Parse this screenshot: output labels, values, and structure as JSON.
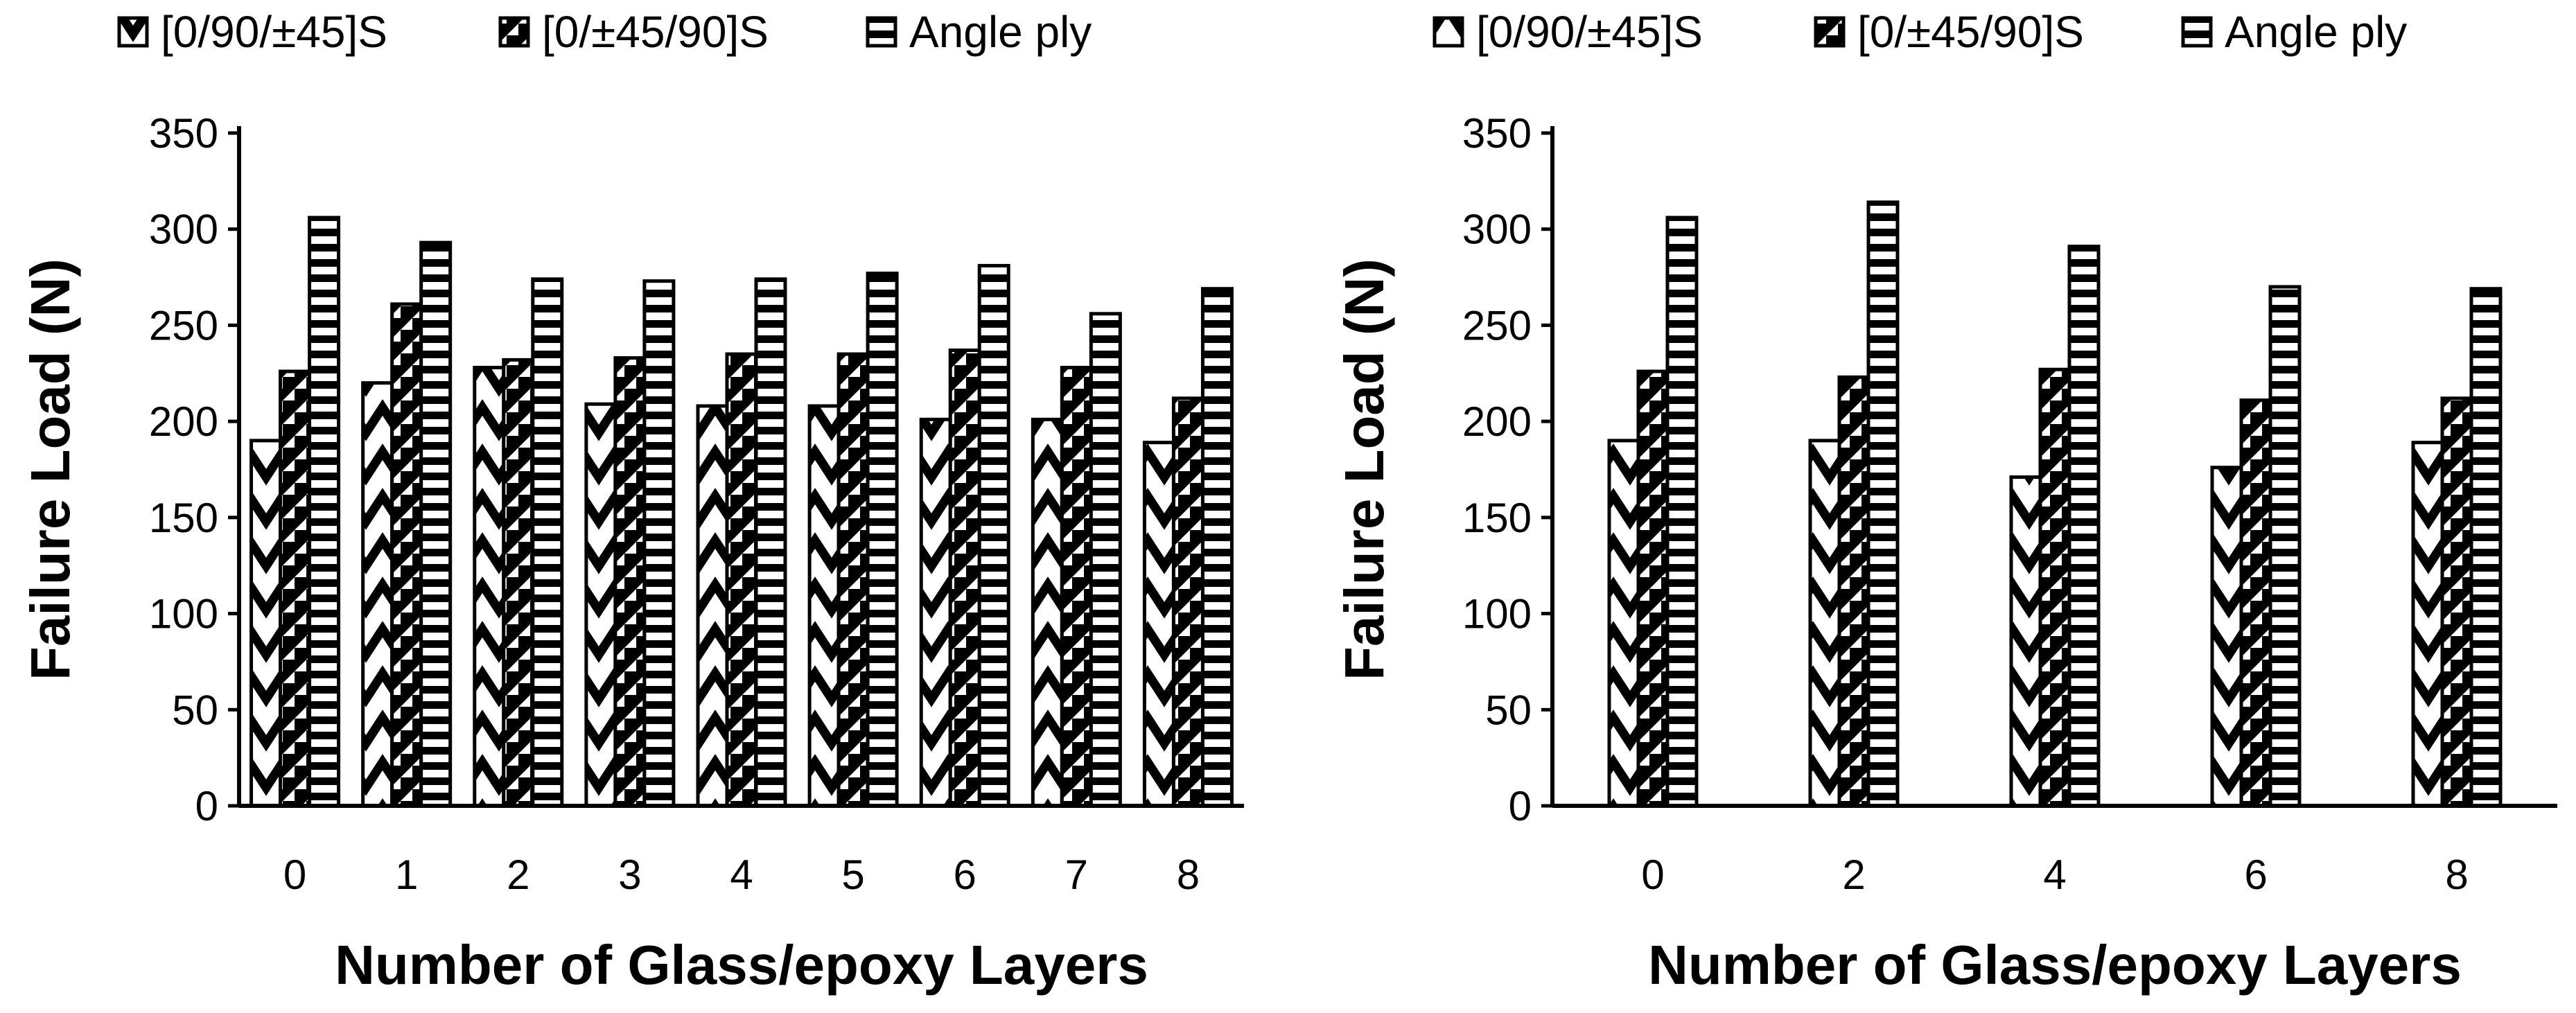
{
  "chart_data": [
    {
      "type": "bar",
      "categories": [
        "0",
        "1",
        "2",
        "3",
        "4",
        "5",
        "6",
        "7",
        "8"
      ],
      "series": [
        {
          "name": "[0/90/±45]S",
          "values": [
            190,
            220,
            228,
            209,
            208,
            208,
            201,
            201,
            189
          ],
          "pattern": "zigzag"
        },
        {
          "name": "[0/±45/90]S",
          "values": [
            226,
            261,
            232,
            233,
            235,
            235,
            237,
            228,
            212
          ],
          "pattern": "diagonal-checker"
        },
        {
          "name": "Angle ply",
          "values": [
            306,
            293,
            274,
            273,
            274,
            277,
            281,
            256,
            269
          ],
          "pattern": "horizontal-stripes"
        }
      ],
      "xlabel": "Number of Glass/epoxy Layers",
      "ylabel": "Failure Load (N)",
      "ylim": [
        0,
        350
      ],
      "yticks": [
        0,
        50,
        100,
        150,
        200,
        250,
        300,
        350
      ],
      "grid": false,
      "legend": "top"
    },
    {
      "type": "bar",
      "categories": [
        "0",
        "2",
        "4",
        "6",
        "8"
      ],
      "series": [
        {
          "name": "[0/90/±45]S",
          "values": [
            190,
            190,
            171,
            176,
            189
          ],
          "pattern": "zigzag"
        },
        {
          "name": "[0/±45/90]S",
          "values": [
            226,
            223,
            227,
            211,
            212
          ],
          "pattern": "diagonal-checker"
        },
        {
          "name": "Angle ply",
          "values": [
            306,
            314,
            291,
            270,
            269
          ],
          "pattern": "horizontal-stripes"
        }
      ],
      "xlabel": "Number of Glass/epoxy Layers",
      "ylabel": "Failure Load (N)",
      "ylim": [
        0,
        350
      ],
      "yticks": [
        0,
        50,
        100,
        150,
        200,
        250,
        300,
        350
      ],
      "grid": false,
      "legend": "top"
    }
  ]
}
